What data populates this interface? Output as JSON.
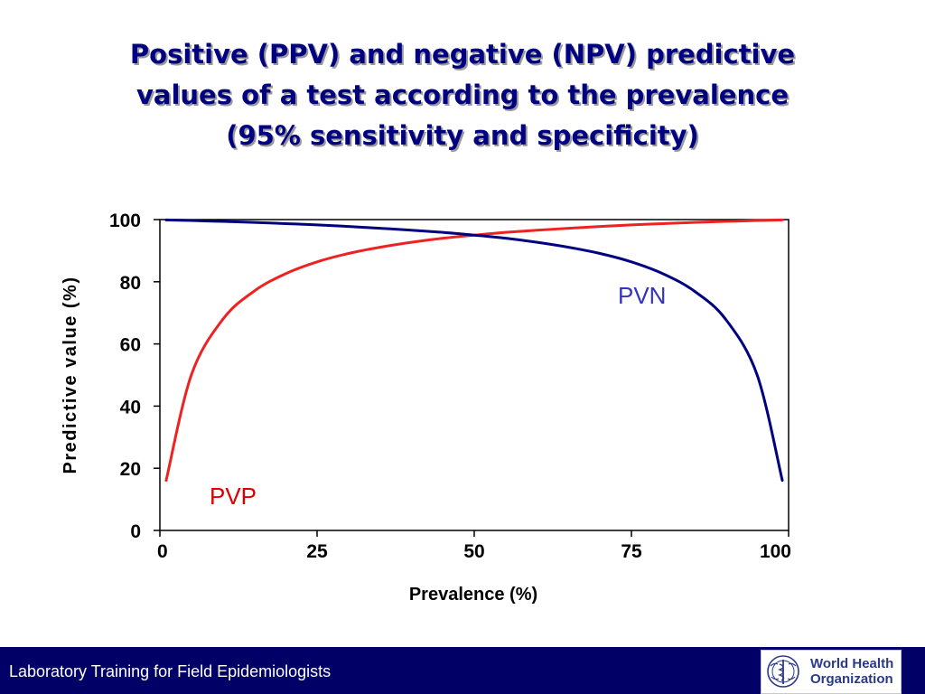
{
  "slide": {
    "title_lines": [
      "Positive (PPV) and negative (NPV) predictive",
      "values of a test according to the prevalence",
      "(95% sensitivity and specificity)"
    ]
  },
  "footer": {
    "text": "Laboratory Training for Field Epidemiologists",
    "logo_text_line1": "World Health",
    "logo_text_line2": "Organization"
  },
  "colors": {
    "title": "#000080",
    "footer_bg": "#000066",
    "ppv_line": "#ee2222",
    "npv_line": "#000080",
    "ppv_label": "#dd0000",
    "npv_label": "#3333bb"
  },
  "chart_data": {
    "type": "line",
    "title": "",
    "xlabel": "Prevalence (%)",
    "ylabel": "Predictive value (%)",
    "xlim": [
      0,
      100
    ],
    "ylim": [
      0,
      100
    ],
    "xticks": [
      0,
      25,
      50,
      75,
      100
    ],
    "yticks": [
      0,
      20,
      40,
      60,
      80,
      100
    ],
    "grid": false,
    "legend": "none",
    "x": [
      1,
      5,
      10,
      15,
      20,
      25,
      30,
      35,
      40,
      45,
      50,
      55,
      60,
      65,
      70,
      75,
      80,
      85,
      90,
      95,
      99
    ],
    "series": [
      {
        "name": "PVP",
        "color": "#ee2222",
        "values": [
          16.1,
          50.0,
          67.9,
          77.0,
          82.6,
          86.4,
          89.1,
          91.1,
          92.7,
          94.0,
          95.0,
          95.9,
          96.6,
          97.2,
          97.8,
          98.3,
          98.7,
          99.1,
          99.4,
          99.7,
          99.9
        ]
      },
      {
        "name": "PVN",
        "color": "#000080",
        "values": [
          99.9,
          99.7,
          99.4,
          99.1,
          98.7,
          98.3,
          97.8,
          97.2,
          96.6,
          95.9,
          95.0,
          94.0,
          92.7,
          91.1,
          89.1,
          86.4,
          82.6,
          77.0,
          67.9,
          50.0,
          16.1
        ]
      }
    ]
  }
}
